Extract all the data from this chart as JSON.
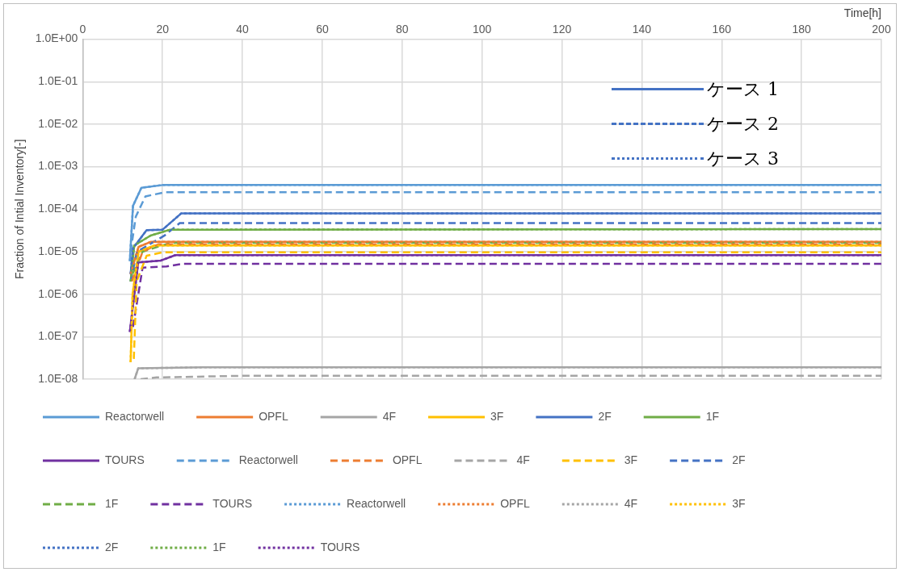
{
  "chart_data": {
    "type": "line",
    "xlabel": "Time[h]",
    "ylabel": "Fraction of Intial Inventory[-]",
    "log": "y",
    "grid": true,
    "legend": "bottom",
    "marker": "none",
    "xlim": [
      0,
      200
    ],
    "xticks": [
      0,
      20,
      40,
      60,
      80,
      100,
      120,
      140,
      160,
      180,
      200
    ],
    "ylim": [
      1e-08,
      1
    ],
    "yticks": [
      {
        "value": 1e-08,
        "label": "1.0E-08"
      },
      {
        "value": 1e-07,
        "label": "1.0E-07"
      },
      {
        "value": 1e-06,
        "label": "1.0E-06"
      },
      {
        "value": 1e-05,
        "label": "1.0E-05"
      },
      {
        "value": 0.0001,
        "label": "1.0E-04"
      },
      {
        "value": 0.001,
        "label": "1.0E-03"
      },
      {
        "value": 0.01,
        "label": "1.0E-02"
      },
      {
        "value": 0.1,
        "label": "1.0E-01"
      },
      {
        "value": 1,
        "label": "1.0E+00"
      }
    ],
    "annotations": [
      "ケース 1",
      "ケース 2",
      "ケース 3"
    ],
    "series": [
      {
        "name": "Reactorwell",
        "color": "#5b9bd5",
        "line_style": "solid",
        "x": [
          11.8,
          12.6,
          14.7,
          20,
          200
        ],
        "values": [
          6e-06,
          0.00012,
          0.00032,
          0.00037,
          0.00037
        ]
      },
      {
        "name": "OPFL",
        "color": "#ed7d31",
        "line_style": "solid",
        "x": [
          12,
          14,
          17,
          200
        ],
        "values": [
          3e-06,
          1.3e-05,
          1.7e-05,
          1.7e-05
        ]
      },
      {
        "name": "4F",
        "color": "#a5a5a5",
        "line_style": "solid",
        "x": [
          13,
          13.9,
          30,
          200
        ],
        "values": [
          1e-08,
          1.8e-08,
          1.9e-08,
          1.9e-08
        ]
      },
      {
        "name": "3F",
        "color": "#ffc000",
        "line_style": "solid",
        "x": [
          12,
          12.5,
          14,
          18,
          200
        ],
        "values": [
          2.5e-08,
          1e-06,
          1e-05,
          1.4e-05,
          1.4e-05
        ]
      },
      {
        "name": "2F",
        "color": "#4472c4",
        "line_style": "solid",
        "x": [
          12,
          12.6,
          16,
          20,
          24.7,
          200
        ],
        "values": [
          3e-06,
          1.2e-05,
          3.2e-05,
          3.3e-05,
          8e-05,
          8e-05
        ]
      },
      {
        "name": "1F",
        "color": "#70ad47",
        "line_style": "solid",
        "x": [
          12,
          12.9,
          17,
          21.9,
          200
        ],
        "values": [
          2e-06,
          1.4e-05,
          2.4e-05,
          3.3e-05,
          3.4e-05
        ]
      },
      {
        "name": "TOURS",
        "color": "#7030a0",
        "line_style": "solid",
        "x": [
          11.8,
          13.9,
          19.6,
          23.2,
          200
        ],
        "values": [
          1.3e-07,
          5.6e-06,
          6.2e-06,
          8.3e-06,
          8.3e-06
        ]
      },
      {
        "name": "Reactorwell",
        "color": "#5b9bd5",
        "line_style": "dashed",
        "x": [
          12,
          13.3,
          15.7,
          20.5,
          200
        ],
        "values": [
          1e-05,
          6.7e-05,
          0.0002,
          0.00025,
          0.00025
        ]
      },
      {
        "name": "OPFL",
        "color": "#ed7d31",
        "line_style": "dashed",
        "x": [
          12.3,
          15,
          19,
          200
        ],
        "values": [
          2e-06,
          1e-05,
          1.5e-05,
          1.5e-05
        ]
      },
      {
        "name": "4F",
        "color": "#a5a5a5",
        "line_style": "dashed",
        "x": [
          14.5,
          18.5,
          40,
          200
        ],
        "values": [
          1e-08,
          1.1e-08,
          1.2e-08,
          1.2e-08
        ]
      },
      {
        "name": "3F",
        "color": "#ffc000",
        "line_style": "dashed",
        "x": [
          12.8,
          13.5,
          16,
          20,
          200
        ],
        "values": [
          3e-08,
          2e-06,
          8e-06,
          9.7e-06,
          9.7e-06
        ]
      },
      {
        "name": "2F",
        "color": "#4472c4",
        "line_style": "dashed",
        "x": [
          12,
          13.6,
          20.5,
          24.3,
          200
        ],
        "values": [
          2e-06,
          1e-05,
          2.4e-05,
          4.7e-05,
          4.7e-05
        ]
      },
      {
        "name": "1F",
        "color": "#70ad47",
        "line_style": "dashed",
        "x": [
          12.5,
          15,
          22,
          200
        ],
        "values": [
          3e-06,
          1e-05,
          1.62e-05,
          1.62e-05
        ]
      },
      {
        "name": "TOURS",
        "color": "#7030a0",
        "line_style": "dashed",
        "x": [
          12.6,
          15,
          21,
          25,
          200
        ],
        "values": [
          1.7e-07,
          4.2e-06,
          4.5e-06,
          5.2e-06,
          5.2e-06
        ]
      },
      {
        "name": "Reactorwell",
        "color": "#5b9bd5",
        "line_style": "dotted",
        "x": [
          11.8,
          12.6,
          14.7,
          20,
          200
        ],
        "values": [
          6e-06,
          0.00012,
          0.00032,
          0.00037,
          0.00037
        ]
      },
      {
        "name": "OPFL",
        "color": "#ed7d31",
        "line_style": "dotted",
        "x": [
          12,
          14,
          17,
          200
        ],
        "values": [
          3e-06,
          1.3e-05,
          1.7e-05,
          1.7e-05
        ]
      },
      {
        "name": "4F",
        "color": "#a5a5a5",
        "line_style": "dotted",
        "x": [
          13,
          13.9,
          30,
          200
        ],
        "values": [
          1e-08,
          1.8e-08,
          1.9e-08,
          1.9e-08
        ]
      },
      {
        "name": "3F",
        "color": "#ffc000",
        "line_style": "dotted",
        "x": [
          12,
          12.5,
          14,
          18,
          200
        ],
        "values": [
          2.5e-08,
          1e-06,
          1e-05,
          1.4e-05,
          1.4e-05
        ]
      },
      {
        "name": "2F",
        "color": "#4472c4",
        "line_style": "dotted",
        "x": [
          12,
          12.6,
          16,
          20,
          24.7,
          200
        ],
        "values": [
          3e-06,
          1.2e-05,
          3.2e-05,
          3.3e-05,
          8e-05,
          8e-05
        ]
      },
      {
        "name": "1F",
        "color": "#70ad47",
        "line_style": "dotted",
        "x": [
          12,
          12.9,
          17,
          21.9,
          200
        ],
        "values": [
          2e-06,
          1.4e-05,
          2.4e-05,
          3.3e-05,
          3.4e-05
        ]
      },
      {
        "name": "TOURS",
        "color": "#7030a0",
        "line_style": "dotted",
        "x": [
          11.8,
          13.9,
          19.6,
          23.2,
          200
        ],
        "values": [
          1.3e-07,
          5.6e-06,
          6.2e-06,
          8.3e-06,
          8.3e-06
        ]
      }
    ]
  }
}
